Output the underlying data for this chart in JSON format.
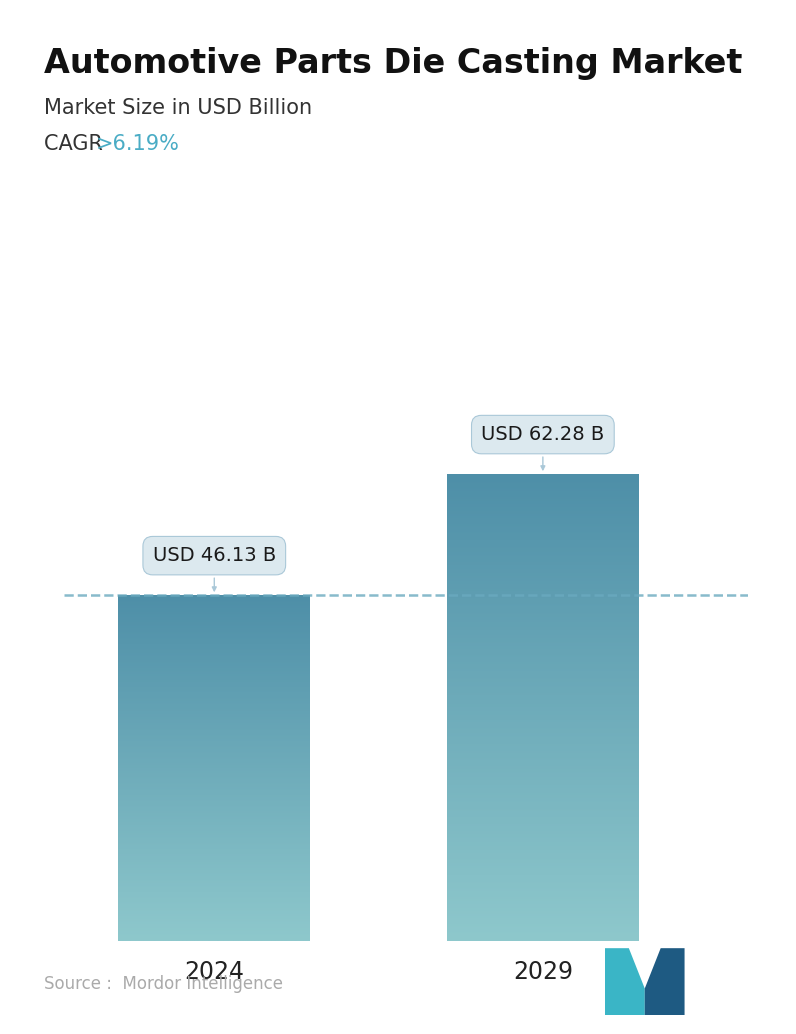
{
  "title": "Automotive Parts Die Casting Market",
  "subtitle": "Market Size in USD Billion",
  "cagr_label": "CAGR ",
  "cagr_value": ">6.19%",
  "categories": [
    "2024",
    "2029"
  ],
  "values": [
    46.13,
    62.28
  ],
  "bar_labels": [
    "USD 46.13 B",
    "USD 62.28 B"
  ],
  "bar_color_top": "#4e8fa8",
  "bar_color_bottom": "#8ec8cc",
  "dashed_line_color": "#6aaabf",
  "title_fontsize": 24,
  "subtitle_fontsize": 15,
  "cagr_fontsize": 15,
  "cagr_value_color": "#4aacc5",
  "xlabel_fontsize": 17,
  "annotation_fontsize": 14,
  "source_text": "Source :  Mordor Intelligence",
  "source_color": "#aaaaaa",
  "background_color": "#ffffff",
  "ylim": [
    0,
    80
  ]
}
